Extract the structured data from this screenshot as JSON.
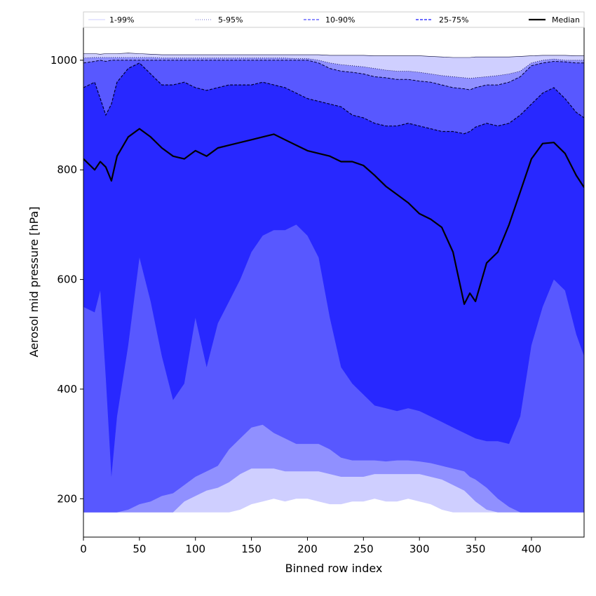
{
  "chart_data": {
    "type": "area",
    "title": "",
    "xlabel": "Binned row index",
    "ylabel": "Aerosol mid pressure [hPa]",
    "xlim": [
      0,
      447
    ],
    "ylim": [
      130,
      1060
    ],
    "xticks": [
      0,
      50,
      100,
      150,
      200,
      250,
      300,
      350,
      400
    ],
    "yticks": [
      200,
      400,
      600,
      800,
      1000
    ],
    "legend_position": "top",
    "grid": false,
    "colors": {
      "band_1_99": "#cfcfff",
      "band_5_95": "#9090ff",
      "band_10_90": "#5858ff",
      "band_25_75": "#2828ff",
      "median": "#000000",
      "background": "#ffffff"
    },
    "legend": [
      {
        "label": "1-99%",
        "style": "solid-thin"
      },
      {
        "label": "5-95%",
        "style": "dotted"
      },
      {
        "label": "10-90%",
        "style": "dashed"
      },
      {
        "label": "25-75%",
        "style": "dashed"
      },
      {
        "label": "Median",
        "style": "solid-thick"
      }
    ],
    "x": [
      0,
      10,
      15,
      20,
      25,
      30,
      40,
      50,
      60,
      70,
      80,
      90,
      100,
      110,
      120,
      130,
      140,
      150,
      160,
      170,
      180,
      190,
      200,
      210,
      220,
      230,
      240,
      250,
      260,
      270,
      280,
      290,
      300,
      310,
      320,
      330,
      340,
      345,
      350,
      360,
      370,
      380,
      390,
      400,
      410,
      420,
      430,
      440,
      447
    ],
    "series": [
      {
        "name": "1-99% lower",
        "values": [
          175,
          175,
          175,
          175,
          175,
          175,
          175,
          175,
          175,
          175,
          175,
          175,
          175,
          175,
          175,
          175,
          180,
          190,
          195,
          200,
          195,
          200,
          200,
          195,
          190,
          190,
          195,
          195,
          200,
          195,
          195,
          200,
          195,
          190,
          180,
          175,
          175,
          175,
          175,
          175,
          175,
          175,
          175,
          175,
          175,
          175,
          175,
          175,
          175
        ]
      },
      {
        "name": "5-95% lower",
        "values": [
          175,
          175,
          175,
          175,
          175,
          175,
          175,
          175,
          175,
          175,
          175,
          195,
          205,
          215,
          220,
          230,
          245,
          255,
          255,
          255,
          250,
          250,
          250,
          250,
          245,
          240,
          240,
          240,
          245,
          245,
          245,
          245,
          245,
          240,
          235,
          225,
          215,
          205,
          195,
          180,
          175,
          175,
          175,
          175,
          175,
          175,
          175,
          175,
          175
        ]
      },
      {
        "name": "10-90% lower",
        "values": [
          175,
          175,
          175,
          175,
          175,
          175,
          180,
          190,
          195,
          205,
          210,
          225,
          240,
          250,
          260,
          290,
          310,
          330,
          335,
          320,
          310,
          300,
          300,
          300,
          290,
          275,
          270,
          270,
          270,
          268,
          270,
          270,
          268,
          265,
          260,
          255,
          250,
          240,
          235,
          220,
          200,
          185,
          175,
          175,
          175,
          175,
          175,
          175,
          175
        ]
      },
      {
        "name": "25-75% lower",
        "values": [
          550,
          540,
          580,
          420,
          240,
          350,
          480,
          640,
          560,
          460,
          380,
          410,
          530,
          440,
          520,
          560,
          600,
          650,
          680,
          690,
          690,
          700,
          680,
          640,
          530,
          440,
          410,
          390,
          370,
          365,
          360,
          365,
          360,
          350,
          340,
          330,
          320,
          315,
          310,
          305,
          305,
          300,
          350,
          480,
          550,
          600,
          580,
          500,
          460
        ]
      },
      {
        "name": "25-75% upper",
        "values": [
          950,
          960,
          930,
          900,
          920,
          960,
          985,
          995,
          975,
          955,
          955,
          960,
          950,
          945,
          950,
          955,
          955,
          955,
          960,
          955,
          950,
          940,
          930,
          925,
          920,
          915,
          900,
          895,
          885,
          880,
          880,
          885,
          880,
          875,
          870,
          870,
          866,
          870,
          878,
          885,
          880,
          885,
          900,
          920,
          940,
          950,
          930,
          905,
          895
        ]
      },
      {
        "name": "10-90% upper",
        "values": [
          995,
          998,
          1000,
          998,
          1000,
          1000,
          1000,
          1000,
          1000,
          1000,
          1000,
          1000,
          1000,
          1000,
          1000,
          1000,
          1000,
          1000,
          1000,
          1000,
          1000,
          1000,
          1000,
          995,
          985,
          980,
          978,
          975,
          970,
          968,
          965,
          965,
          962,
          960,
          955,
          950,
          948,
          946,
          950,
          955,
          955,
          960,
          970,
          990,
          995,
          998,
          997,
          995,
          995
        ]
      },
      {
        "name": "5-95% upper",
        "values": [
          1004,
          1005,
          1005,
          1005,
          1005,
          1005,
          1005,
          1005,
          1005,
          1004,
          1004,
          1004,
          1004,
          1004,
          1004,
          1004,
          1004,
          1004,
          1004,
          1004,
          1004,
          1003,
          1003,
          1000,
          995,
          992,
          990,
          988,
          985,
          982,
          980,
          980,
          978,
          975,
          972,
          970,
          968,
          967,
          968,
          970,
          972,
          975,
          980,
          995,
          1000,
          1002,
          1000,
          1000,
          1000
        ]
      },
      {
        "name": "1-99% upper",
        "values": [
          1012,
          1012,
          1011,
          1012,
          1012,
          1012,
          1013,
          1012,
          1011,
          1010,
          1010,
          1010,
          1010,
          1010,
          1010,
          1010,
          1010,
          1010,
          1010,
          1010,
          1010,
          1010,
          1010,
          1010,
          1009,
          1009,
          1009,
          1009,
          1008,
          1008,
          1008,
          1008,
          1008,
          1007,
          1006,
          1005,
          1005,
          1005,
          1006,
          1006,
          1006,
          1006,
          1007,
          1008,
          1009,
          1009,
          1009,
          1008,
          1008
        ]
      },
      {
        "name": "Median",
        "values": [
          820,
          800,
          815,
          805,
          780,
          825,
          860,
          875,
          860,
          840,
          825,
          820,
          835,
          825,
          840,
          845,
          850,
          855,
          860,
          865,
          855,
          845,
          835,
          830,
          825,
          815,
          815,
          808,
          790,
          770,
          755,
          740,
          720,
          710,
          695,
          650,
          555,
          575,
          560,
          630,
          650,
          700,
          760,
          820,
          848,
          850,
          830,
          790,
          768
        ]
      }
    ]
  }
}
